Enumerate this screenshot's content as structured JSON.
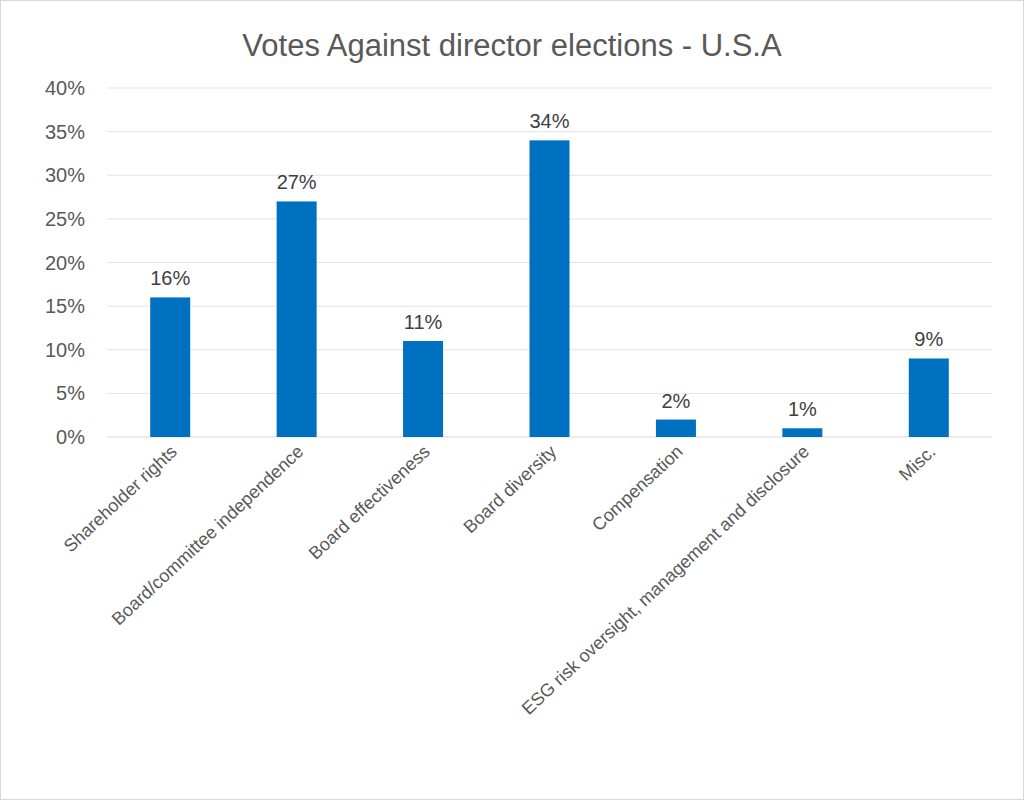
{
  "chart_data": {
    "type": "bar",
    "title": "Votes Against director elections - U.S.A",
    "categories": [
      "Shareholder rights",
      "Board/committee independence",
      "Board effectiveness",
      "Board diversity",
      "Compensation",
      "ESG risk oversight, management and disclosure",
      "Misc."
    ],
    "values": [
      16,
      27,
      11,
      34,
      2,
      1,
      9
    ],
    "value_labels": [
      "16%",
      "27%",
      "11%",
      "34%",
      "2%",
      "1%",
      "9%"
    ],
    "color": "#0070c0",
    "ylim": [
      0,
      40
    ],
    "yticks": [
      {
        "value": 0,
        "label": "0%"
      },
      {
        "value": 5,
        "label": "5%"
      },
      {
        "value": 10,
        "label": "10%"
      },
      {
        "value": 15,
        "label": "15%"
      },
      {
        "value": 20,
        "label": "20%"
      },
      {
        "value": 25,
        "label": "25%"
      },
      {
        "value": 30,
        "label": "30%"
      },
      {
        "value": 35,
        "label": "35%"
      },
      {
        "value": 40,
        "label": "40%"
      }
    ],
    "grid": true,
    "data_labels": true
  }
}
